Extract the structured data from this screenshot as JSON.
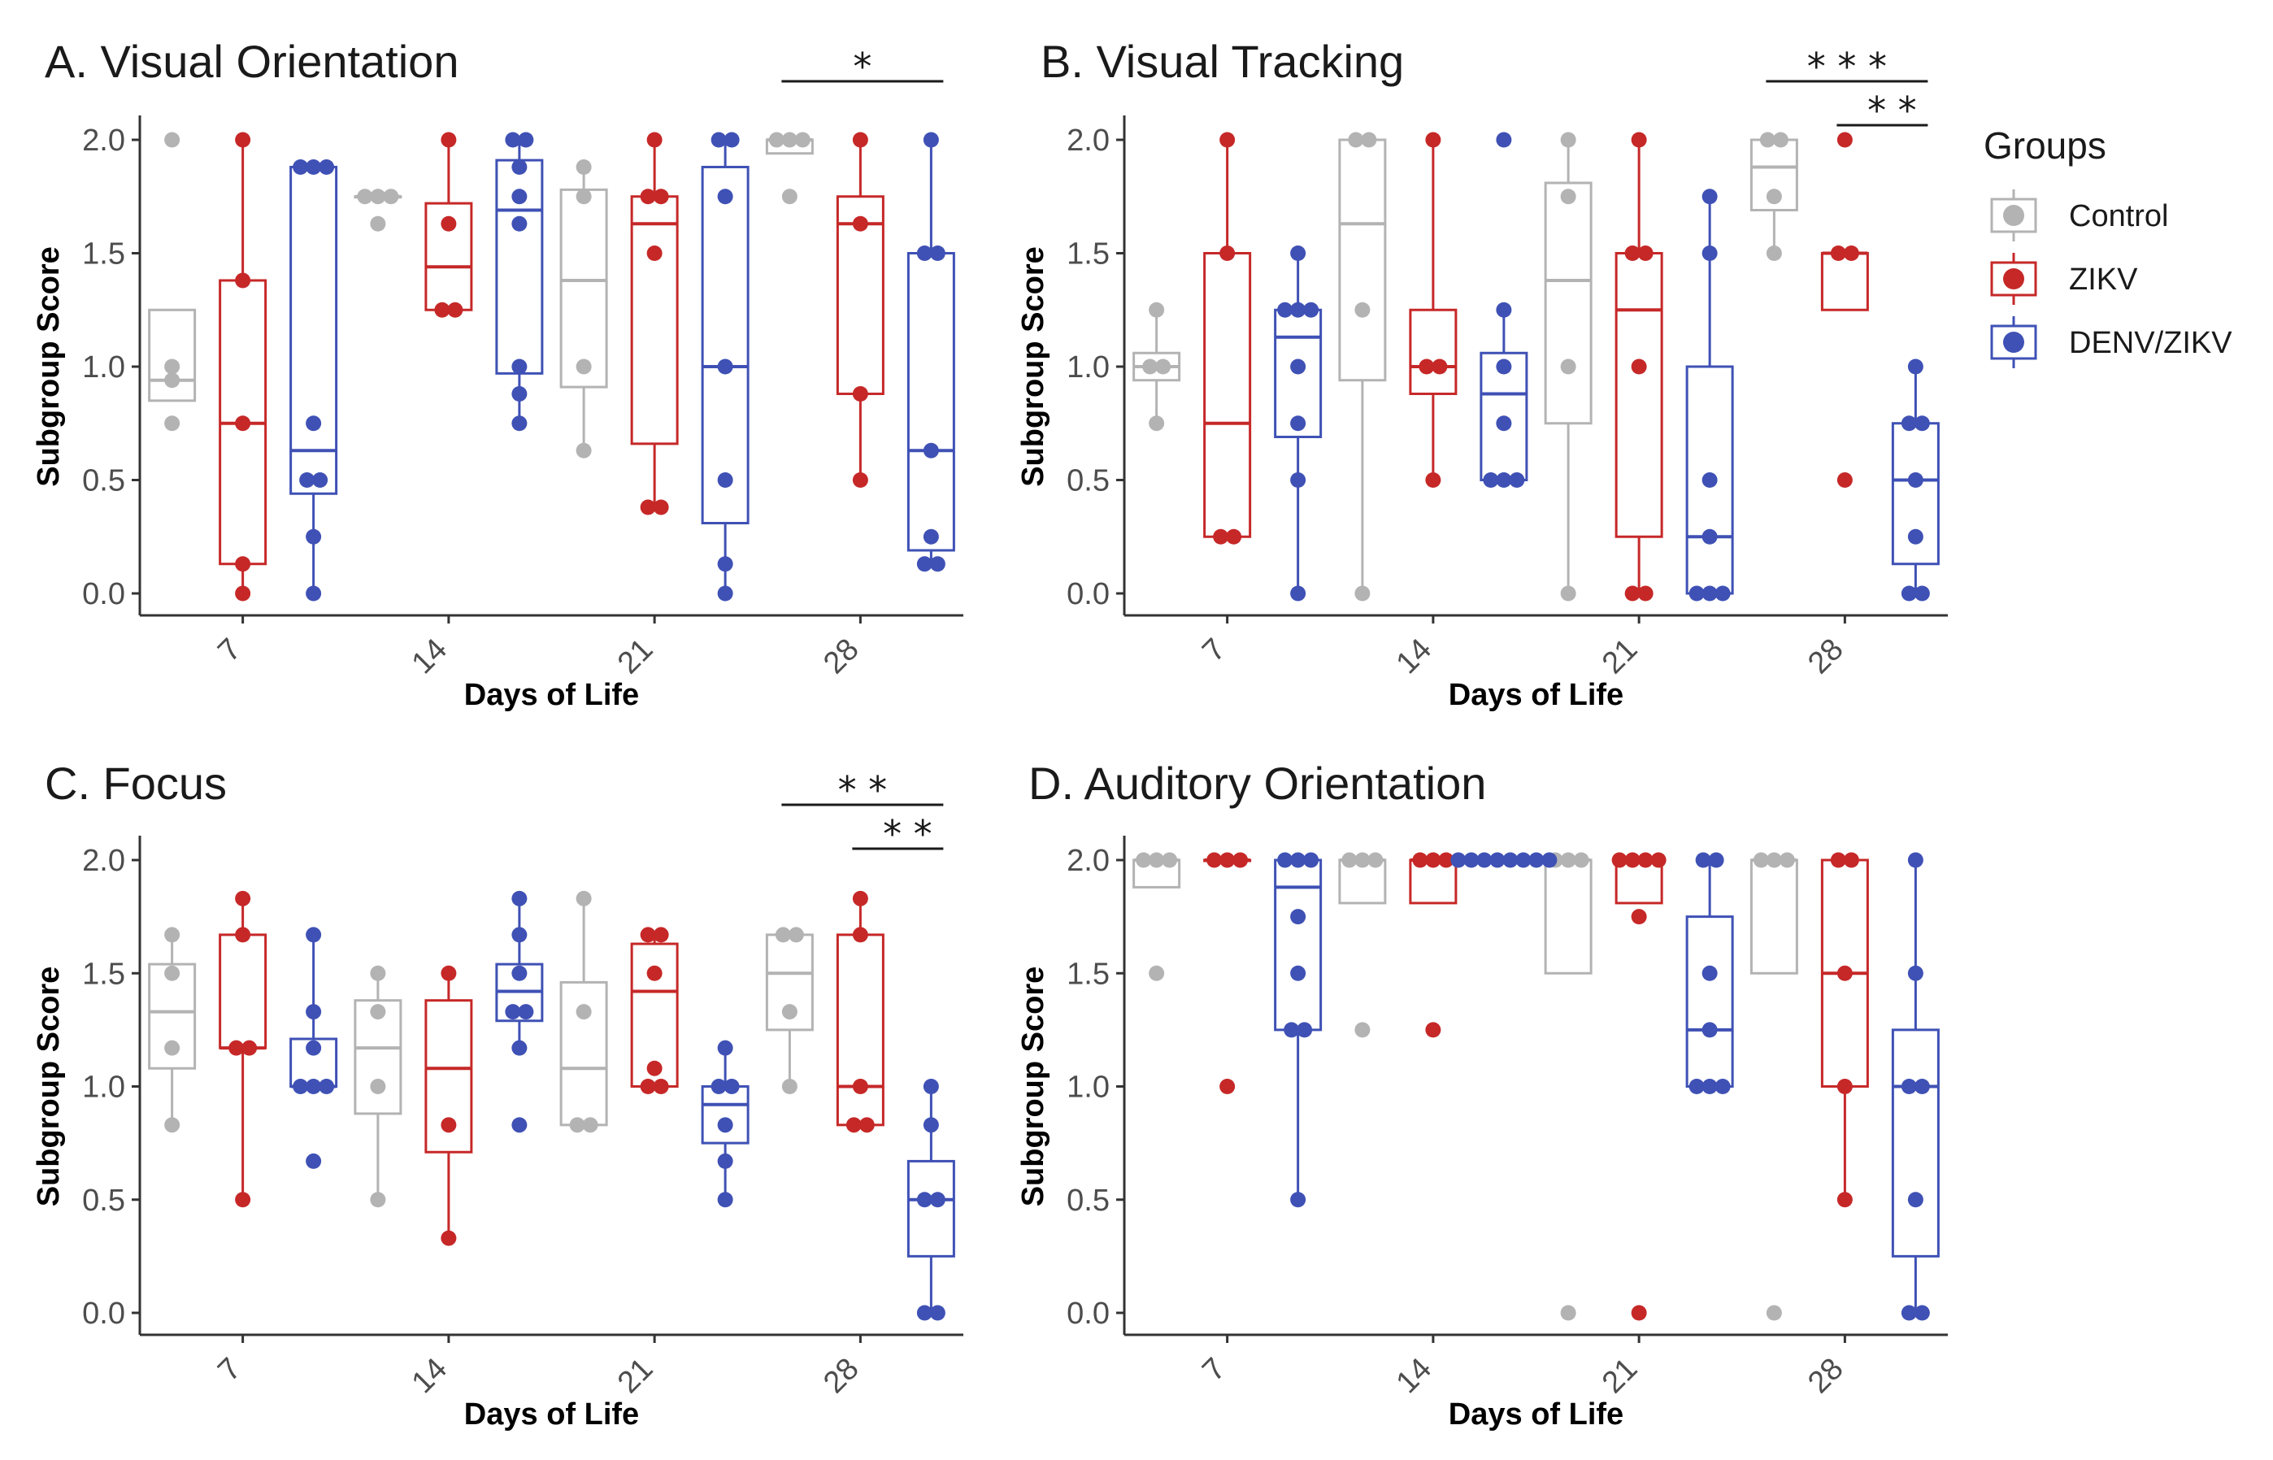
{
  "legend": {
    "title": "Groups",
    "entries": [
      {
        "name": "Control",
        "color": "#b3b3b3"
      },
      {
        "name": "ZIKV",
        "color": "#c62828"
      },
      {
        "name": "DENV/ZIKV",
        "color": "#3f51b5"
      }
    ]
  },
  "chart_data": [
    {
      "type": "box",
      "title": "A. Visual Orientation",
      "xlabel": "Days of Life",
      "ylabel": "Subgroup Score",
      "categories": [
        "7",
        "14",
        "21",
        "28"
      ],
      "ylim": [
        0,
        2
      ],
      "yticks": [
        "0.0",
        "0.5",
        "1.0",
        "1.5",
        "2.0"
      ],
      "series": [
        {
          "name": "Control",
          "boxes": [
            {
              "q1": 0.85,
              "median": 0.94,
              "q3": 1.25,
              "lo": 0.85,
              "hi": 1.25,
              "points": [
                0.75,
                0.94,
                1.0,
                2.0
              ]
            },
            {
              "q1": 1.75,
              "median": 1.75,
              "q3": 1.75,
              "lo": 1.75,
              "hi": 1.75,
              "points": [
                1.63,
                1.75,
                1.75,
                1.75
              ]
            },
            {
              "q1": 0.91,
              "median": 1.38,
              "q3": 1.78,
              "lo": 0.63,
              "hi": 1.88,
              "points": [
                0.63,
                1.0,
                1.75,
                1.88
              ]
            },
            {
              "q1": 1.94,
              "median": 2.0,
              "q3": 2.0,
              "lo": 1.94,
              "hi": 2.0,
              "points": [
                1.75,
                2.0,
                2.0,
                2.0
              ]
            }
          ]
        },
        {
          "name": "ZIKV",
          "boxes": [
            {
              "q1": 0.13,
              "median": 0.75,
              "q3": 1.38,
              "lo": 0.0,
              "hi": 2.0,
              "points": [
                0.0,
                0.13,
                0.75,
                1.38,
                2.0
              ]
            },
            {
              "q1": 1.25,
              "median": 1.44,
              "q3": 1.72,
              "lo": 1.25,
              "hi": 2.0,
              "points": [
                1.25,
                1.25,
                1.63,
                2.0
              ]
            },
            {
              "q1": 0.66,
              "median": 1.63,
              "q3": 1.75,
              "lo": 0.38,
              "hi": 2.0,
              "points": [
                0.38,
                0.38,
                1.5,
                1.75,
                1.75,
                2.0
              ]
            },
            {
              "q1": 0.88,
              "median": 1.63,
              "q3": 1.75,
              "lo": 0.5,
              "hi": 2.0,
              "points": [
                0.5,
                0.88,
                1.63,
                2.0
              ]
            }
          ]
        },
        {
          "name": "DENV/ZIKV",
          "boxes": [
            {
              "q1": 0.44,
              "median": 0.63,
              "q3": 1.88,
              "lo": 0.0,
              "hi": 1.88,
              "points": [
                0.0,
                0.25,
                0.5,
                0.5,
                0.75,
                1.88,
                1.88,
                1.88
              ]
            },
            {
              "q1": 0.97,
              "median": 1.69,
              "q3": 1.91,
              "lo": 0.75,
              "hi": 2.0,
              "points": [
                0.75,
                0.88,
                1.0,
                1.63,
                1.75,
                1.88,
                2.0,
                2.0
              ]
            },
            {
              "q1": 0.31,
              "median": 1.0,
              "q3": 1.88,
              "lo": 0.0,
              "hi": 2.0,
              "points": [
                0.0,
                0.13,
                0.5,
                1.0,
                1.75,
                2.0,
                2.0
              ]
            },
            {
              "q1": 0.19,
              "median": 0.63,
              "q3": 1.5,
              "lo": 0.13,
              "hi": 2.0,
              "points": [
                0.13,
                0.13,
                0.25,
                0.63,
                1.5,
                1.5,
                2.0
              ]
            }
          ]
        }
      ],
      "significance": [
        {
          "label": "*",
          "category": "28",
          "from": "Control",
          "to": "DENV/ZIKV"
        }
      ]
    },
    {
      "type": "box",
      "title": "B. Visual Tracking",
      "xlabel": "Days of Life",
      "ylabel": "Subgroup Score",
      "categories": [
        "7",
        "14",
        "21",
        "28"
      ],
      "ylim": [
        0,
        2
      ],
      "yticks": [
        "0.0",
        "0.5",
        "1.0",
        "1.5",
        "2.0"
      ],
      "series": [
        {
          "name": "Control",
          "boxes": [
            {
              "q1": 0.94,
              "median": 1.0,
              "q3": 1.06,
              "lo": 0.75,
              "hi": 1.25,
              "points": [
                0.75,
                1.0,
                1.0,
                1.25
              ]
            },
            {
              "q1": 0.94,
              "median": 1.63,
              "q3": 2.0,
              "lo": 0.0,
              "hi": 2.0,
              "points": [
                0.0,
                1.25,
                2.0,
                2.0
              ]
            },
            {
              "q1": 0.75,
              "median": 1.38,
              "q3": 1.81,
              "lo": 0.0,
              "hi": 2.0,
              "points": [
                0.0,
                1.0,
                1.75,
                2.0
              ]
            },
            {
              "q1": 1.69,
              "median": 1.88,
              "q3": 2.0,
              "lo": 1.5,
              "hi": 2.0,
              "points": [
                1.5,
                1.75,
                2.0,
                2.0
              ]
            }
          ]
        },
        {
          "name": "ZIKV",
          "boxes": [
            {
              "q1": 0.25,
              "median": 0.75,
              "q3": 1.5,
              "lo": 0.25,
              "hi": 2.0,
              "points": [
                0.25,
                0.25,
                1.5,
                2.0
              ]
            },
            {
              "q1": 0.88,
              "median": 1.0,
              "q3": 1.25,
              "lo": 0.5,
              "hi": 2.0,
              "points": [
                0.5,
                1.0,
                1.0,
                2.0
              ]
            },
            {
              "q1": 0.25,
              "median": 1.25,
              "q3": 1.5,
              "lo": 0.0,
              "hi": 2.0,
              "points": [
                0.0,
                0.0,
                1.0,
                1.5,
                1.5,
                2.0
              ]
            },
            {
              "q1": 1.25,
              "median": 1.5,
              "q3": 1.5,
              "lo": 1.25,
              "hi": 1.5,
              "points": [
                0.5,
                1.5,
                1.5,
                2.0
              ]
            }
          ]
        },
        {
          "name": "DENV/ZIKV",
          "boxes": [
            {
              "q1": 0.69,
              "median": 1.13,
              "q3": 1.25,
              "lo": 0.0,
              "hi": 1.5,
              "points": [
                0.0,
                0.5,
                0.75,
                1.0,
                1.25,
                1.25,
                1.25,
                1.5
              ]
            },
            {
              "q1": 0.5,
              "median": 0.88,
              "q3": 1.06,
              "lo": 0.5,
              "hi": 1.25,
              "points": [
                0.5,
                0.5,
                0.5,
                0.75,
                1.0,
                1.25,
                2.0
              ]
            },
            {
              "q1": 0.0,
              "median": 0.25,
              "q3": 1.0,
              "lo": 0.0,
              "hi": 1.75,
              "points": [
                0.0,
                0.0,
                0.0,
                0.25,
                0.5,
                1.5,
                1.75
              ]
            },
            {
              "q1": 0.13,
              "median": 0.5,
              "q3": 0.75,
              "lo": 0.0,
              "hi": 1.0,
              "points": [
                0.0,
                0.0,
                0.25,
                0.5,
                0.75,
                0.75,
                1.0
              ]
            }
          ]
        }
      ],
      "significance": [
        {
          "label": "* * *",
          "category": "28",
          "from": "Control",
          "to": "DENV/ZIKV"
        },
        {
          "label": "* *",
          "category": "28",
          "from": "ZIKV",
          "to": "DENV/ZIKV"
        }
      ]
    },
    {
      "type": "box",
      "title": "C.  Focus",
      "xlabel": "Days of Life",
      "ylabel": "Subgroup Score",
      "categories": [
        "7",
        "14",
        "21",
        "28"
      ],
      "ylim": [
        0,
        2
      ],
      "yticks": [
        "0.0",
        "0.5",
        "1.0",
        "1.5",
        "2.0"
      ],
      "series": [
        {
          "name": "Control",
          "boxes": [
            {
              "q1": 1.08,
              "median": 1.33,
              "q3": 1.54,
              "lo": 0.83,
              "hi": 1.67,
              "points": [
                0.83,
                1.17,
                1.5,
                1.67
              ]
            },
            {
              "q1": 0.88,
              "median": 1.17,
              "q3": 1.38,
              "lo": 0.5,
              "hi": 1.5,
              "points": [
                0.5,
                1.0,
                1.33,
                1.5
              ]
            },
            {
              "q1": 0.83,
              "median": 1.08,
              "q3": 1.46,
              "lo": 0.83,
              "hi": 1.83,
              "points": [
                0.83,
                0.83,
                1.33,
                1.83
              ]
            },
            {
              "q1": 1.25,
              "median": 1.5,
              "q3": 1.67,
              "lo": 1.0,
              "hi": 1.67,
              "points": [
                1.0,
                1.33,
                1.67,
                1.67
              ]
            }
          ]
        },
        {
          "name": "ZIKV",
          "boxes": [
            {
              "q1": 1.17,
              "median": 1.17,
              "q3": 1.67,
              "lo": 0.5,
              "hi": 1.83,
              "points": [
                0.5,
                1.17,
                1.17,
                1.67,
                1.83
              ]
            },
            {
              "q1": 0.71,
              "median": 1.08,
              "q3": 1.38,
              "lo": 0.33,
              "hi": 1.5,
              "points": [
                0.33,
                0.83,
                1.5
              ]
            },
            {
              "q1": 1.0,
              "median": 1.42,
              "q3": 1.63,
              "lo": 1.0,
              "hi": 1.67,
              "points": [
                1.0,
                1.0,
                1.08,
                1.5,
                1.67,
                1.67
              ]
            },
            {
              "q1": 0.83,
              "median": 1.0,
              "q3": 1.67,
              "lo": 0.83,
              "hi": 1.83,
              "points": [
                0.83,
                0.83,
                1.0,
                1.67,
                1.83
              ]
            }
          ]
        },
        {
          "name": "DENV/ZIKV",
          "boxes": [
            {
              "q1": 1.0,
              "median": 1.0,
              "q3": 1.21,
              "lo": 1.0,
              "hi": 1.67,
              "points": [
                0.67,
                1.0,
                1.0,
                1.0,
                1.17,
                1.33,
                1.67
              ]
            },
            {
              "q1": 1.29,
              "median": 1.42,
              "q3": 1.54,
              "lo": 1.17,
              "hi": 1.83,
              "points": [
                0.83,
                1.17,
                1.33,
                1.33,
                1.5,
                1.67,
                1.83
              ]
            },
            {
              "q1": 0.75,
              "median": 0.92,
              "q3": 1.0,
              "lo": 0.5,
              "hi": 1.17,
              "points": [
                0.5,
                0.67,
                0.83,
                1.0,
                1.0,
                1.17
              ]
            },
            {
              "q1": 0.25,
              "median": 0.5,
              "q3": 0.67,
              "lo": 0.0,
              "hi": 1.0,
              "points": [
                0.0,
                0.0,
                0.5,
                0.5,
                0.83,
                1.0
              ]
            }
          ]
        }
      ],
      "significance": [
        {
          "label": "* *",
          "category": "28",
          "from": "Control",
          "to": "DENV/ZIKV"
        },
        {
          "label": "* *",
          "category": "28",
          "from": "ZIKV",
          "to": "DENV/ZIKV"
        }
      ]
    },
    {
      "type": "box",
      "title": "D. Auditory Orientation",
      "xlabel": "Days of Life",
      "ylabel": "Subgroup Score",
      "categories": [
        "7",
        "14",
        "21",
        "28"
      ],
      "ylim": [
        0,
        2
      ],
      "yticks": [
        "0.0",
        "0.5",
        "1.0",
        "1.5",
        "2.0"
      ],
      "series": [
        {
          "name": "Control",
          "boxes": [
            {
              "q1": 1.88,
              "median": 2.0,
              "q3": 2.0,
              "lo": 1.88,
              "hi": 2.0,
              "points": [
                1.5,
                2.0,
                2.0,
                2.0
              ]
            },
            {
              "q1": 1.81,
              "median": 2.0,
              "q3": 2.0,
              "lo": 1.81,
              "hi": 2.0,
              "points": [
                1.25,
                2.0,
                2.0,
                2.0
              ]
            },
            {
              "q1": 1.5,
              "median": 2.0,
              "q3": 2.0,
              "lo": 1.5,
              "hi": 2.0,
              "points": [
                0.0,
                2.0,
                2.0,
                2.0
              ]
            },
            {
              "q1": 1.5,
              "median": 2.0,
              "q3": 2.0,
              "lo": 1.5,
              "hi": 2.0,
              "points": [
                0.0,
                2.0,
                2.0,
                2.0
              ]
            }
          ]
        },
        {
          "name": "ZIKV",
          "boxes": [
            {
              "q1": 2.0,
              "median": 2.0,
              "q3": 2.0,
              "lo": 2.0,
              "hi": 2.0,
              "points": [
                1.0,
                2.0,
                2.0,
                2.0
              ]
            },
            {
              "q1": 1.81,
              "median": 2.0,
              "q3": 2.0,
              "lo": 1.81,
              "hi": 2.0,
              "points": [
                1.25,
                2.0,
                2.0,
                2.0
              ]
            },
            {
              "q1": 1.81,
              "median": 2.0,
              "q3": 2.0,
              "lo": 1.81,
              "hi": 2.0,
              "points": [
                0.0,
                1.75,
                2.0,
                2.0,
                2.0,
                2.0
              ]
            },
            {
              "q1": 1.0,
              "median": 1.5,
              "q3": 2.0,
              "lo": 0.5,
              "hi": 2.0,
              "points": [
                0.5,
                1.0,
                1.5,
                2.0,
                2.0
              ]
            }
          ]
        },
        {
          "name": "DENV/ZIKV",
          "boxes": [
            {
              "q1": 1.25,
              "median": 1.88,
              "q3": 2.0,
              "lo": 0.5,
              "hi": 2.0,
              "points": [
                0.5,
                1.25,
                1.25,
                1.5,
                1.75,
                2.0,
                2.0,
                2.0
              ]
            },
            {
              "q1": 2.0,
              "median": 2.0,
              "q3": 2.0,
              "lo": 2.0,
              "hi": 2.0,
              "points": [
                2.0,
                2.0,
                2.0,
                2.0,
                2.0,
                2.0,
                2.0,
                2.0
              ]
            },
            {
              "q1": 1.0,
              "median": 1.25,
              "q3": 1.75,
              "lo": 1.0,
              "hi": 2.0,
              "points": [
                1.0,
                1.0,
                1.0,
                1.25,
                1.5,
                2.0,
                2.0
              ]
            },
            {
              "q1": 0.25,
              "median": 1.0,
              "q3": 1.25,
              "lo": 0.0,
              "hi": 2.0,
              "points": [
                0.0,
                0.0,
                0.5,
                1.0,
                1.0,
                1.5,
                2.0
              ]
            }
          ]
        }
      ],
      "significance": []
    }
  ]
}
